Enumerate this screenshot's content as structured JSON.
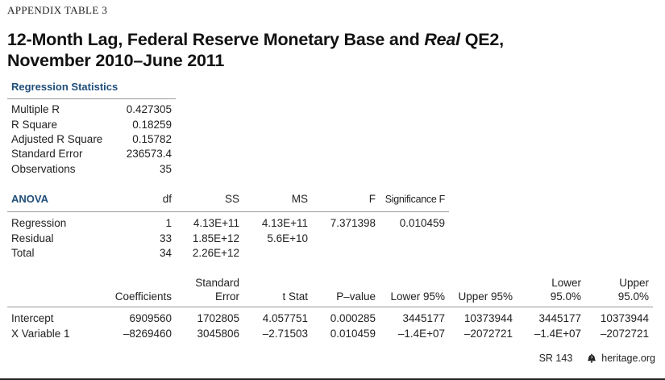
{
  "header": {
    "appendix_label": "APPENDIX TABLE 3",
    "title_line1_a": "12-Month Lag, Federal Reserve Monetary Base and ",
    "title_line1_italic": "Real",
    "title_line1_b": " QE2,",
    "title_line2": "November 2010–June 2011"
  },
  "regression_statistics": {
    "title": "Regression Statistics",
    "rows": [
      {
        "label": "Multiple R",
        "value": "0.427305"
      },
      {
        "label": "R Square",
        "value": "0.18259"
      },
      {
        "label": "Adjusted R Square",
        "value": "0.15782"
      },
      {
        "label": "Standard Error",
        "value": "236573.4"
      },
      {
        "label": "Observations",
        "value": "35"
      }
    ]
  },
  "anova": {
    "title": "ANOVA",
    "columns": [
      "df",
      "SS",
      "MS",
      "F",
      "Significance F"
    ],
    "rows": [
      {
        "label": "Regression",
        "df": "1",
        "ss": "4.13E+11",
        "ms": "4.13E+11",
        "f": "7.371398",
        "sig": "0.010459"
      },
      {
        "label": "Residual",
        "df": "33",
        "ss": "1.85E+12",
        "ms": "5.6E+10",
        "f": "",
        "sig": ""
      },
      {
        "label": "Total",
        "df": "34",
        "ss": "2.26E+12",
        "ms": "",
        "f": "",
        "sig": ""
      }
    ]
  },
  "coefficients": {
    "columns": {
      "coef": "Coefficients",
      "se_1": "Standard",
      "se_2": "Error",
      "tstat": "t Stat",
      "pvalue": "P–value",
      "lower95": "Lower 95%",
      "upper95": "Upper 95%",
      "lower950_1": "Lower",
      "lower950_2": "95.0%",
      "upper950_1": "Upper",
      "upper950_2": "95.0%"
    },
    "rows": [
      {
        "label": "Intercept",
        "coef": "6909560",
        "se": "1702805",
        "tstat": "4.057751",
        "p": "0.000285",
        "l95": "3445177",
        "u95": "10373944",
        "l950": "3445177",
        "u950": "10373944"
      },
      {
        "label": "X Variable 1",
        "coef": "–8269460",
        "se": "3045806",
        "tstat": "–2.71503",
        "p": "0.010459",
        "l95": "–1.4E+07",
        "u95": "–2072721",
        "l950": "–1.4E+07",
        "u950": "–2072721"
      }
    ]
  },
  "footer": {
    "report_id": "SR 143",
    "logo_icon": "liberty-bell-icon",
    "site": "heritage.org"
  }
}
